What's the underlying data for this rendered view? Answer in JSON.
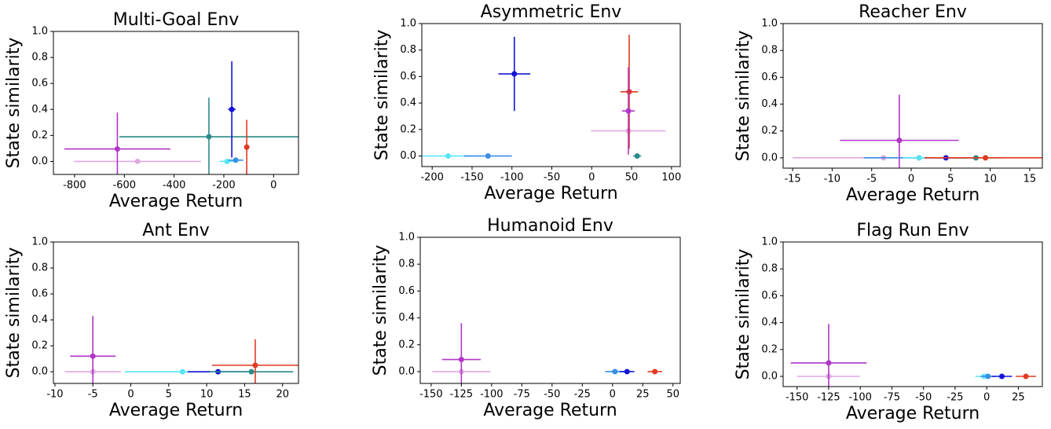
{
  "chart_data": [
    {
      "type": "scatter",
      "title": "Multi-Goal Env",
      "xlabel": "Average Return",
      "ylabel": "State similarity",
      "xlim": [
        -885,
        100
      ],
      "ylim": [
        -0.1,
        1.0
      ],
      "xticks": [
        -800,
        -600,
        -400,
        -200,
        0
      ],
      "yticks": [
        {
          "value": 0,
          "label": "0.0"
        },
        0.2,
        0.4,
        0.6,
        0.8,
        {
          "value": 1,
          "label": "1.0"
        }
      ],
      "series": [
        {
          "color": "#e0a8e0",
          "x": [
            -547
          ],
          "y": [
            0
          ],
          "xerr": [
            255
          ]
        },
        {
          "color": "#b035c8",
          "x": [
            -628
          ],
          "y": [
            0.096
          ],
          "xerr": [
            213
          ],
          "yerr": [
            0.28
          ]
        },
        {
          "color": "#2b8a8a",
          "x": [
            -260
          ],
          "y": [
            0.19
          ],
          "xerr": [
            360
          ],
          "yerr": [
            0.3
          ]
        },
        {
          "color": "#55e6f5",
          "x": [
            -187
          ],
          "y": [
            0
          ],
          "xerr": [
            30
          ]
        },
        {
          "color": "#3a8ee6",
          "x": [
            -152
          ],
          "y": [
            0.01
          ],
          "xerr": [
            30
          ]
        },
        {
          "color": "#1414d6",
          "x": [
            -168
          ],
          "y": [
            0.4
          ],
          "xerr": [
            15
          ],
          "yerr": [
            0.37
          ]
        },
        {
          "color": "#e03a20",
          "x": [
            -108
          ],
          "y": [
            0.11
          ],
          "yerr": [
            0.21
          ]
        }
      ]
    },
    {
      "type": "scatter",
      "title": "Asymmetric Env",
      "xlabel": "Average Return",
      "ylabel": "State similarity",
      "xlim": [
        -213,
        111
      ],
      "ylim": [
        -0.08,
        1.0
      ],
      "xticks": [
        -200,
        -150,
        -100,
        -50,
        0,
        50,
        100
      ],
      "yticks": [
        {
          "value": 0,
          "label": "0.0"
        },
        0.2,
        0.4,
        0.6,
        0.8,
        {
          "value": 1,
          "label": "1.0"
        }
      ],
      "series": [
        {
          "color": "#55e6f5",
          "x": [
            -180
          ],
          "y": [
            0
          ],
          "xerr": [
            32
          ]
        },
        {
          "color": "#3a8ee6",
          "x": [
            -130
          ],
          "y": [
            0
          ],
          "xerr": [
            30
          ]
        },
        {
          "color": "#1414d6",
          "x": [
            -97
          ],
          "y": [
            0.62
          ],
          "xerr": [
            20
          ],
          "yerr": [
            0.28
          ]
        },
        {
          "color": "#e0a8e0",
          "x": [
            46
          ],
          "y": [
            0.19
          ],
          "xerr": [
            47
          ]
        },
        {
          "color": "#e03a20",
          "x": [
            47
          ],
          "y": [
            0.485
          ],
          "xerr": [
            11
          ],
          "yerr": [
            0.43
          ]
        },
        {
          "color": "#b035c8",
          "x": [
            46
          ],
          "y": [
            0.34
          ],
          "xerr": [
            8
          ],
          "yerr": [
            0.33
          ]
        },
        {
          "color": "#2b8a8a",
          "x": [
            57
          ],
          "y": [
            0
          ],
          "xerr": [
            5
          ]
        }
      ]
    },
    {
      "type": "scatter",
      "title": "Reacher Env",
      "xlabel": "Average Return",
      "ylabel": "State similarity",
      "xlim": [
        -16.2,
        16.6
      ],
      "ylim": [
        -0.077,
        1.0
      ],
      "xticks": [
        -15,
        -10,
        -5,
        0,
        5,
        10,
        15
      ],
      "yticks": [
        {
          "value": 0,
          "label": "0.0"
        },
        0.2,
        0.4,
        0.6,
        0.8,
        {
          "value": 1,
          "label": "1.0"
        }
      ],
      "series": [
        {
          "color": "#e0a8e0",
          "x": [
            -3.5
          ],
          "y": [
            0
          ],
          "xerr": [
            11.5
          ]
        },
        {
          "color": "#b035c8",
          "x": [
            -1.5
          ],
          "y": [
            0.13
          ],
          "xerr": [
            7.5
          ],
          "yerr": [
            0.34
          ]
        },
        {
          "color": "#3a8ee6",
          "x": [
            1
          ],
          "y": [
            0
          ],
          "xerr": [
            7
          ]
        },
        {
          "color": "#55e6f5",
          "x": [
            1
          ],
          "y": [
            0
          ],
          "xerr": [
            2
          ]
        },
        {
          "color": "#1414d6",
          "x": [
            4.4
          ],
          "y": [
            0
          ],
          "xerr": [
            2.7
          ]
        },
        {
          "color": "#2b8a8a",
          "x": [
            8.2
          ],
          "y": [
            0
          ],
          "xerr": [
            3.5
          ]
        },
        {
          "color": "#e03a20",
          "x": [
            9.4
          ],
          "y": [
            0
          ],
          "xerr": [
            7.7
          ]
        }
      ]
    },
    {
      "type": "scatter",
      "title": "Ant Env",
      "xlabel": "Average Return",
      "ylabel": "State similarity",
      "xlim": [
        -10.2,
        22.1
      ],
      "ylim": [
        -0.09,
        1.0
      ],
      "xticks": [
        -10,
        -5,
        0,
        5,
        10,
        15,
        20
      ],
      "yticks": [
        {
          "value": 0,
          "label": "0.0"
        },
        0.2,
        0.4,
        0.6,
        0.8,
        {
          "value": 1,
          "label": "1.0"
        }
      ],
      "series": [
        {
          "color": "#e0a8e0",
          "x": [
            -5
          ],
          "y": [
            0
          ],
          "xerr": [
            3.7
          ]
        },
        {
          "color": "#b035c8",
          "x": [
            -5
          ],
          "y": [
            0.12
          ],
          "xerr": [
            3
          ],
          "yerr": [
            0.31
          ]
        },
        {
          "color": "#55e6f5",
          "x": [
            6.8
          ],
          "y": [
            0
          ],
          "xerr": [
            7.6
          ]
        },
        {
          "color": "#1414d6",
          "x": [
            11.5
          ],
          "y": [
            0
          ],
          "xerr": [
            4
          ]
        },
        {
          "color": "#2b8a8a",
          "x": [
            15.9
          ],
          "y": [
            0
          ],
          "xerr": [
            5.5
          ]
        },
        {
          "color": "#e03a20",
          "x": [
            16.4
          ],
          "y": [
            0.05
          ],
          "xerr": [
            5.7
          ],
          "yerr": [
            0.2
          ]
        }
      ]
    },
    {
      "type": "scatter",
      "title": "Humanoid Env",
      "xlabel": "Average Return",
      "ylabel": "State similarity",
      "xlim": [
        -159,
        56
      ],
      "ylim": [
        -0.088,
        1.0
      ],
      "xticks": [
        -150,
        -125,
        -100,
        -75,
        -50,
        -25,
        0,
        25,
        50
      ],
      "yticks": [
        {
          "value": 0,
          "label": "0.0"
        },
        0.2,
        0.4,
        0.6,
        0.8,
        {
          "value": 1,
          "label": "1.0"
        }
      ],
      "series": [
        {
          "color": "#e0a8e0",
          "x": [
            -125
          ],
          "y": [
            0
          ],
          "xerr": [
            24
          ]
        },
        {
          "color": "#b035c8",
          "x": [
            -125
          ],
          "y": [
            0.09
          ],
          "xerr": [
            16
          ],
          "yerr": [
            0.27
          ]
        },
        {
          "color": "#55e6f5",
          "x": [
            2
          ],
          "y": [
            0
          ],
          "xerr": [
            5
          ]
        },
        {
          "color": "#3a8ee6",
          "x": [
            2
          ],
          "y": [
            0
          ],
          "xerr": [
            8
          ]
        },
        {
          "color": "#1414d6",
          "x": [
            12
          ],
          "y": [
            0
          ],
          "xerr": [
            6
          ]
        },
        {
          "color": "#e03a20",
          "x": [
            35
          ],
          "y": [
            0
          ],
          "xerr": [
            6
          ]
        }
      ]
    },
    {
      "type": "scatter",
      "title": "Flag Run Env",
      "xlabel": "Average Return",
      "ylabel": "State similarity",
      "xlim": [
        -161,
        44
      ],
      "ylim": [
        -0.076,
        1.0
      ],
      "xticks": [
        -150,
        -125,
        -100,
        -75,
        -50,
        -25,
        0,
        25
      ],
      "yticks": [
        {
          "value": 0,
          "label": "0.0"
        },
        0.2,
        0.4,
        0.6,
        0.8,
        {
          "value": 1,
          "label": "1.0"
        }
      ],
      "series": [
        {
          "color": "#e0a8e0",
          "x": [
            -125
          ],
          "y": [
            0
          ],
          "xerr": [
            25
          ]
        },
        {
          "color": "#b035c8",
          "x": [
            -125
          ],
          "y": [
            0.1
          ],
          "xerr": [
            30
          ],
          "yerr": [
            0.29
          ]
        },
        {
          "color": "#55e6f5",
          "x": [
            -2
          ],
          "y": [
            0
          ],
          "xerr": [
            7
          ]
        },
        {
          "color": "#3a8ee6",
          "x": [
            1
          ],
          "y": [
            0
          ],
          "xerr": [
            6
          ]
        },
        {
          "color": "#1414d6",
          "x": [
            12
          ],
          "y": [
            0
          ],
          "xerr": [
            8
          ]
        },
        {
          "color": "#e03a20",
          "x": [
            31
          ],
          "y": [
            0
          ],
          "xerr": [
            8
          ]
        }
      ]
    }
  ]
}
